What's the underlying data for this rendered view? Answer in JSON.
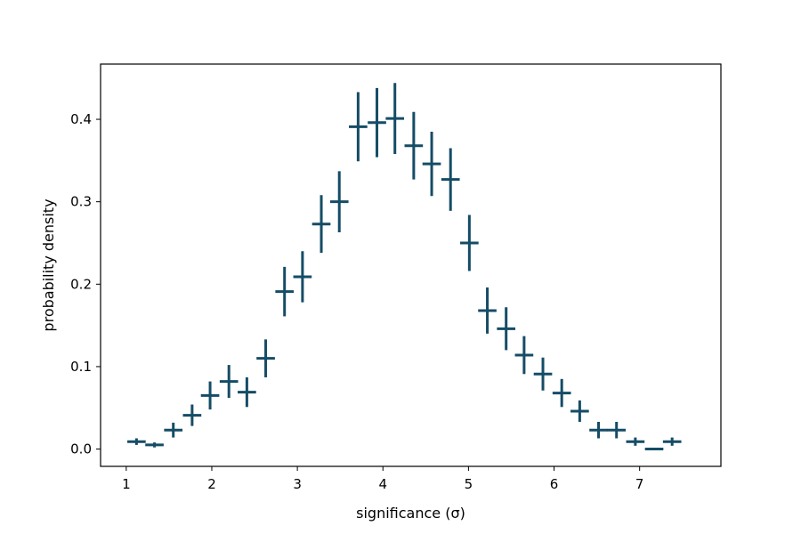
{
  "chart_data": {
    "type": "scatter",
    "title": "",
    "xlabel": "significance (σ)",
    "ylabel": "probability density",
    "xlim": [
      0.7,
      7.95
    ],
    "ylim": [
      -0.021,
      0.467
    ],
    "xticks": [
      1,
      2,
      3,
      4,
      5,
      6,
      7
    ],
    "yticks": [
      0.0,
      0.1,
      0.2,
      0.3,
      0.4
    ],
    "xtick_labels": [
      "1",
      "2",
      "3",
      "4",
      "5",
      "6",
      "7"
    ],
    "ytick_labels": [
      "0.0",
      "0.1",
      "0.2",
      "0.3",
      "0.4"
    ],
    "grid": false,
    "legend": false,
    "bin_width": 0.215,
    "color": "#154c66",
    "points": [
      {
        "x": 1.12,
        "y": 0.009,
        "yerr": 0.004
      },
      {
        "x": 1.33,
        "y": 0.005,
        "yerr": 0.003
      },
      {
        "x": 1.55,
        "y": 0.023,
        "yerr": 0.009
      },
      {
        "x": 1.77,
        "y": 0.041,
        "yerr": 0.013
      },
      {
        "x": 1.98,
        "y": 0.065,
        "yerr": 0.017
      },
      {
        "x": 2.2,
        "y": 0.082,
        "yerr": 0.02
      },
      {
        "x": 2.41,
        "y": 0.069,
        "yerr": 0.018
      },
      {
        "x": 2.63,
        "y": 0.11,
        "yerr": 0.023
      },
      {
        "x": 2.85,
        "y": 0.191,
        "yerr": 0.03
      },
      {
        "x": 3.06,
        "y": 0.209,
        "yerr": 0.031
      },
      {
        "x": 3.28,
        "y": 0.273,
        "yerr": 0.035
      },
      {
        "x": 3.49,
        "y": 0.3,
        "yerr": 0.037
      },
      {
        "x": 3.71,
        "y": 0.391,
        "yerr": 0.042
      },
      {
        "x": 3.93,
        "y": 0.396,
        "yerr": 0.042
      },
      {
        "x": 4.14,
        "y": 0.401,
        "yerr": 0.043
      },
      {
        "x": 4.36,
        "y": 0.368,
        "yerr": 0.041
      },
      {
        "x": 4.57,
        "y": 0.346,
        "yerr": 0.039
      },
      {
        "x": 4.79,
        "y": 0.327,
        "yerr": 0.038
      },
      {
        "x": 5.01,
        "y": 0.25,
        "yerr": 0.034
      },
      {
        "x": 5.22,
        "y": 0.168,
        "yerr": 0.028
      },
      {
        "x": 5.44,
        "y": 0.146,
        "yerr": 0.026
      },
      {
        "x": 5.65,
        "y": 0.114,
        "yerr": 0.023
      },
      {
        "x": 5.87,
        "y": 0.091,
        "yerr": 0.02
      },
      {
        "x": 6.09,
        "y": 0.068,
        "yerr": 0.017
      },
      {
        "x": 6.3,
        "y": 0.046,
        "yerr": 0.013
      },
      {
        "x": 6.52,
        "y": 0.023,
        "yerr": 0.01
      },
      {
        "x": 6.73,
        "y": 0.023,
        "yerr": 0.01
      },
      {
        "x": 6.95,
        "y": 0.009,
        "yerr": 0.005
      },
      {
        "x": 7.17,
        "y": 0.0,
        "yerr": 0.0
      },
      {
        "x": 7.38,
        "y": 0.009,
        "yerr": 0.005
      }
    ]
  }
}
